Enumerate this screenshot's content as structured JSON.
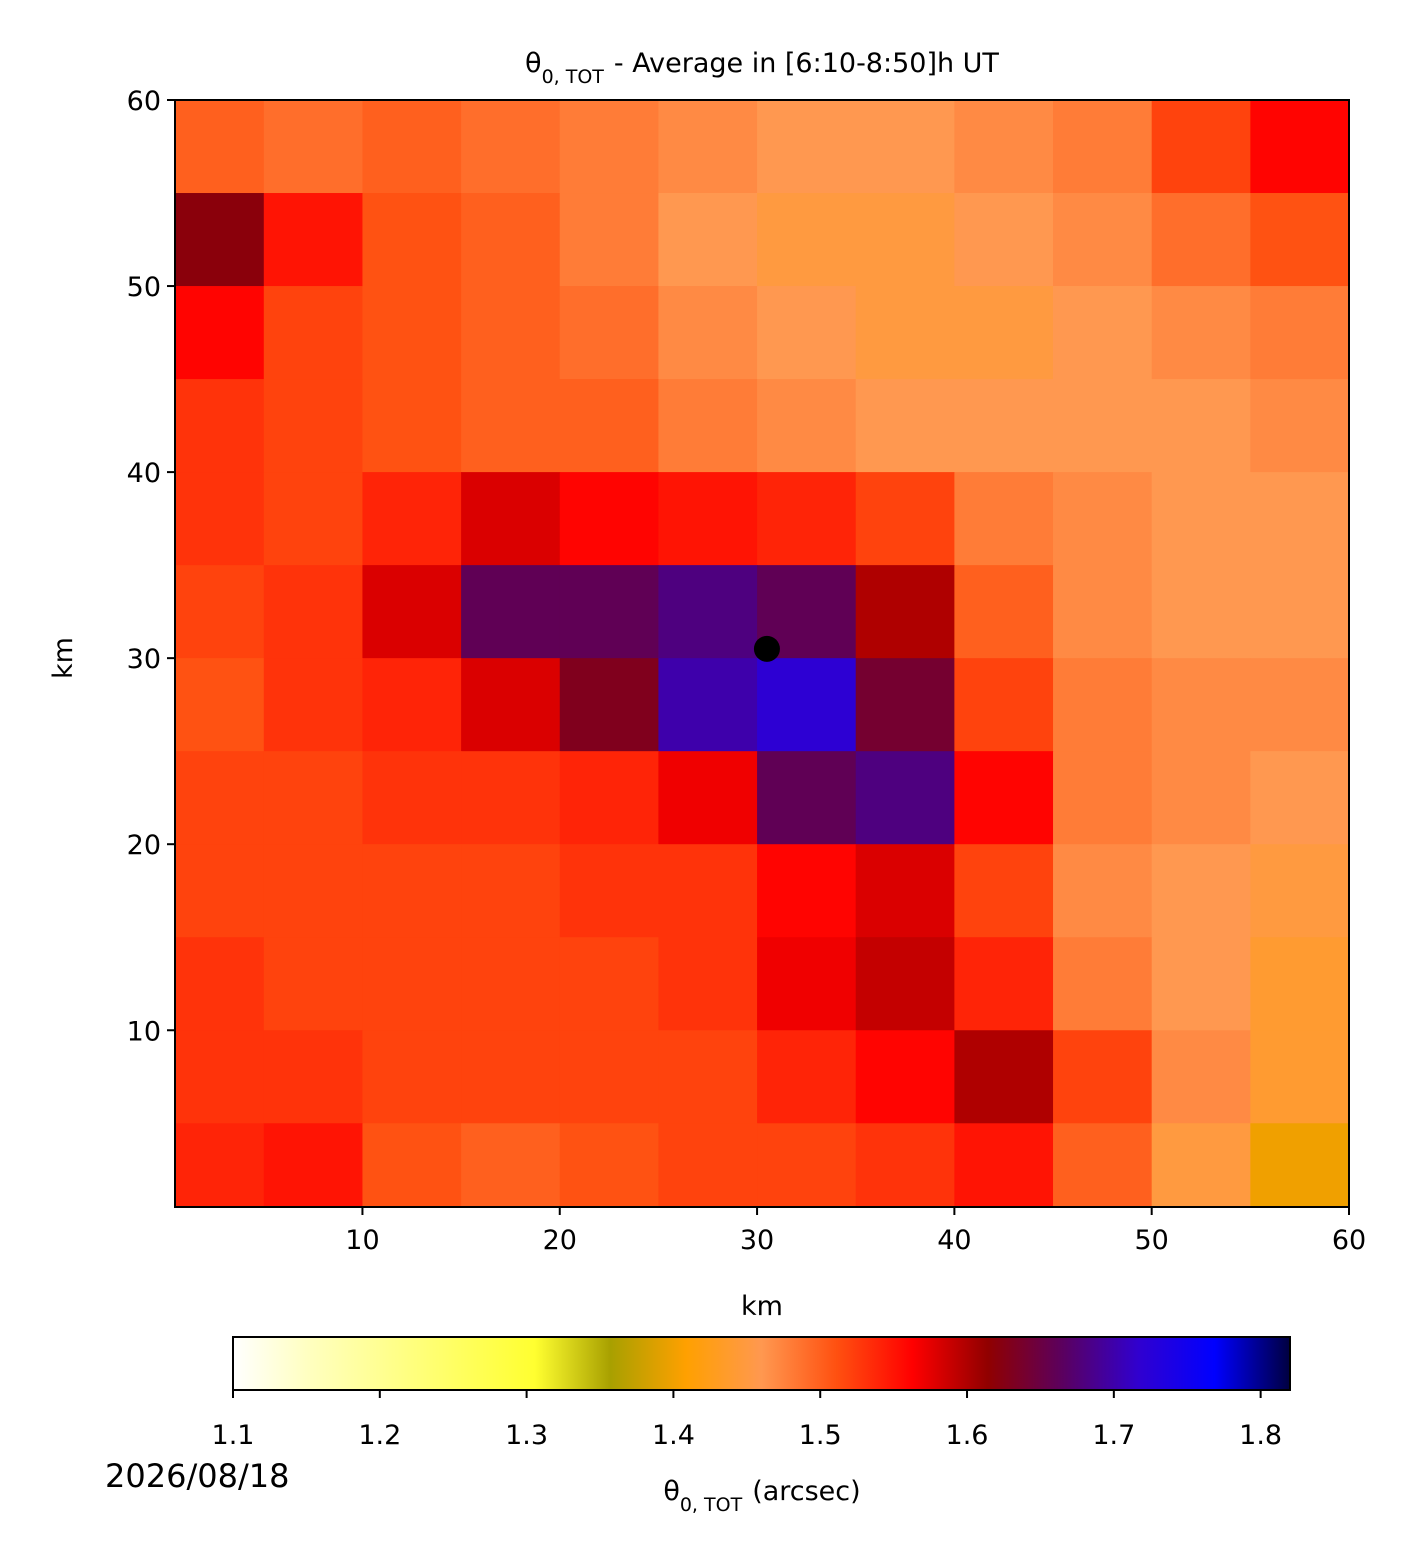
{
  "chart_data": {
    "type": "heatmap",
    "title": {
      "symbol": "θ",
      "subscript": "0, TOT",
      "text": "- Average in [6:10-8:50]h UT"
    },
    "xlabel": "km",
    "ylabel": "km",
    "xlim": [
      0.5,
      60
    ],
    "ylim": [
      0.5,
      60
    ],
    "xticks": [
      10,
      20,
      30,
      40,
      50,
      60
    ],
    "yticks": [
      10,
      20,
      30,
      40,
      50,
      60
    ],
    "x": [
      2.5,
      7.5,
      12.5,
      17.5,
      22.5,
      27.5,
      32.5,
      37.5,
      42.5,
      47.5,
      52.5,
      57.5
    ],
    "y": [
      57.5,
      52.5,
      47.5,
      42.5,
      37.5,
      32.5,
      27.5,
      22.5,
      17.5,
      12.5,
      7.5,
      2.5
    ],
    "z": [
      [
        1.5,
        1.49,
        1.5,
        1.49,
        1.48,
        1.47,
        1.46,
        1.46,
        1.47,
        1.48,
        1.52,
        1.56
      ],
      [
        1.62,
        1.55,
        1.51,
        1.5,
        1.48,
        1.46,
        1.45,
        1.45,
        1.46,
        1.47,
        1.49,
        1.51
      ],
      [
        1.56,
        1.52,
        1.51,
        1.5,
        1.49,
        1.47,
        1.46,
        1.45,
        1.45,
        1.46,
        1.47,
        1.48
      ],
      [
        1.53,
        1.52,
        1.51,
        1.5,
        1.5,
        1.48,
        1.47,
        1.46,
        1.46,
        1.46,
        1.46,
        1.47
      ],
      [
        1.53,
        1.52,
        1.54,
        1.58,
        1.56,
        1.55,
        1.54,
        1.52,
        1.48,
        1.47,
        1.46,
        1.46
      ],
      [
        1.52,
        1.53,
        1.58,
        1.66,
        1.66,
        1.68,
        1.66,
        1.6,
        1.5,
        1.47,
        1.46,
        1.46
      ],
      [
        1.51,
        1.53,
        1.54,
        1.58,
        1.63,
        1.7,
        1.72,
        1.64,
        1.52,
        1.48,
        1.47,
        1.47
      ],
      [
        1.52,
        1.52,
        1.53,
        1.53,
        1.54,
        1.57,
        1.66,
        1.68,
        1.56,
        1.48,
        1.47,
        1.46
      ],
      [
        1.52,
        1.52,
        1.52,
        1.52,
        1.53,
        1.53,
        1.56,
        1.58,
        1.52,
        1.47,
        1.46,
        1.45
      ],
      [
        1.53,
        1.52,
        1.52,
        1.52,
        1.52,
        1.53,
        1.57,
        1.59,
        1.54,
        1.48,
        1.46,
        1.44
      ],
      [
        1.53,
        1.53,
        1.52,
        1.52,
        1.52,
        1.52,
        1.54,
        1.56,
        1.6,
        1.52,
        1.47,
        1.44
      ],
      [
        1.54,
        1.55,
        1.51,
        1.5,
        1.51,
        1.52,
        1.52,
        1.53,
        1.55,
        1.5,
        1.45,
        1.4
      ]
    ],
    "marker": {
      "x": 30.5,
      "y": 30.5,
      "color": "#000000"
    },
    "colormap": [
      "#ffffff",
      "#ffffc0",
      "#ffff90",
      "#ffff60",
      "#ffff30",
      "#a8a000",
      "#ffa000",
      "#ff9850",
      "#ff5010",
      "#ff0000",
      "#900000",
      "#5a0060",
      "#3000d0",
      "#0000ff",
      "#000040"
    ],
    "clim": [
      1.1,
      1.82
    ],
    "cticks": [
      1.1,
      1.2,
      1.3,
      1.4,
      1.5,
      1.6,
      1.7,
      1.8
    ],
    "clabel": {
      "symbol": "θ",
      "subscript": "0, TOT",
      "text": "(arcsec)"
    },
    "date": "2026/08/18"
  }
}
